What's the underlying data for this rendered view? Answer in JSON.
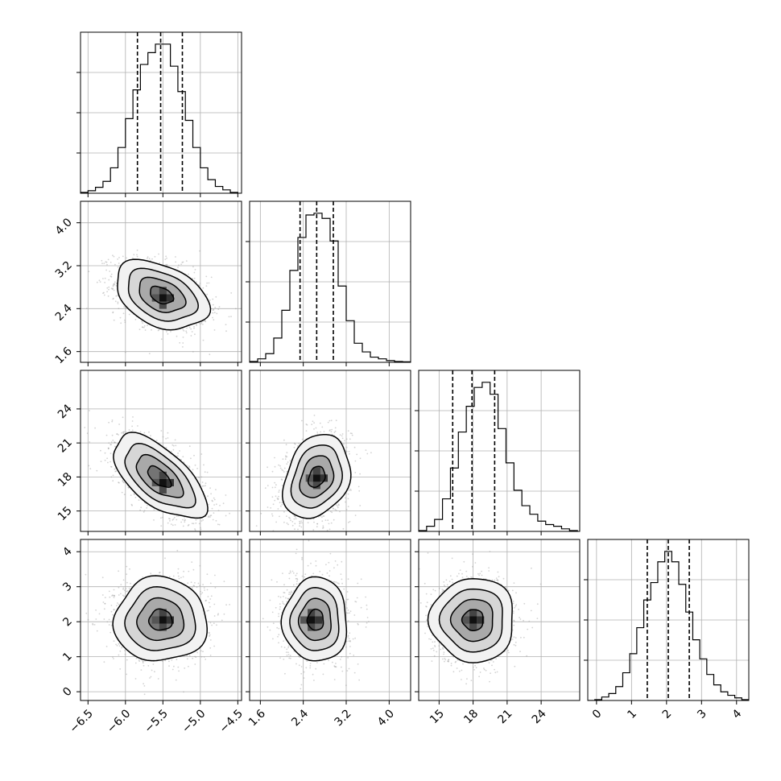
{
  "chart_data": {
    "type": "corner",
    "title": "",
    "parameters": [
      {
        "xlim": [
          -6.6,
          -4.45
        ],
        "ticks": [
          -6.5,
          -6.0,
          -5.5,
          -5.0,
          -4.5
        ],
        "tick_labels": [
          "−6.5",
          "−6.0",
          "−5.5",
          "−5.0",
          "−4.5"
        ],
        "quantiles": [
          -5.84,
          -5.53,
          -5.24
        ]
      },
      {
        "xlim": [
          1.4,
          4.4
        ],
        "ticks": [
          1.6,
          2.4,
          3.2,
          4.0
        ],
        "tick_labels": [
          "1.6",
          "2.4",
          "3.2",
          "4.0"
        ],
        "quantiles": [
          2.34,
          2.65,
          2.96
        ]
      },
      {
        "xlim": [
          13.2,
          27.4
        ],
        "ticks": [
          15,
          18,
          21,
          24
        ],
        "tick_labels": [
          "15",
          "18",
          "21",
          "24"
        ],
        "quantiles": [
          16.2,
          17.9,
          19.9
        ]
      },
      {
        "xlim": [
          -0.25,
          4.35
        ],
        "ticks": [
          0,
          1,
          2,
          3,
          4
        ],
        "tick_labels": [
          "0",
          "1",
          "2",
          "3",
          "4"
        ],
        "quantiles": [
          1.45,
          2.05,
          2.65
        ]
      }
    ],
    "histograms": [
      {
        "param": 0,
        "bin_edges": [
          -6.6,
          -6.5,
          -6.4,
          -6.3,
          -6.2,
          -6.1,
          -6.0,
          -5.9,
          -5.8,
          -5.7,
          -5.6,
          -5.5,
          -5.4,
          -5.3,
          -5.2,
          -5.1,
          -5.0,
          -4.9,
          -4.8,
          -4.7,
          -4.6,
          -4.5
        ],
        "counts": [
          0.5,
          1.5,
          3.5,
          7,
          15,
          27,
          44,
          61,
          76,
          83,
          88,
          88,
          75,
          60,
          43,
          27,
          15,
          8,
          4,
          2,
          0.5
        ]
      },
      {
        "param": 1,
        "bin_edges": [
          1.4,
          1.55,
          1.7,
          1.85,
          2.0,
          2.15,
          2.3,
          2.45,
          2.6,
          2.75,
          2.9,
          3.05,
          3.2,
          3.35,
          3.5,
          3.65,
          3.8,
          3.95,
          4.1,
          4.25,
          4.4
        ],
        "counts": [
          0.5,
          2,
          5,
          14,
          30,
          53,
          72,
          85,
          86,
          83,
          70,
          44,
          24,
          11,
          6,
          3,
          2,
          1,
          0.5,
          0.3
        ]
      },
      {
        "param": 2,
        "bin_edges": [
          13.2,
          13.9,
          14.6,
          15.3,
          16.0,
          16.7,
          17.4,
          18.1,
          18.8,
          19.5,
          20.2,
          20.9,
          21.6,
          22.3,
          23.0,
          23.7,
          24.4,
          25.1,
          25.8,
          26.5,
          27.2
        ],
        "counts": [
          0.5,
          3,
          7,
          19,
          37,
          58,
          73,
          84,
          87,
          80,
          60,
          40,
          24,
          15,
          10,
          6,
          4,
          3,
          1.5,
          0.5
        ]
      },
      {
        "param": 3,
        "bin_edges": [
          -0.25,
          -0.05,
          0.15,
          0.35,
          0.55,
          0.75,
          0.95,
          1.15,
          1.35,
          1.55,
          1.75,
          1.95,
          2.15,
          2.35,
          2.55,
          2.75,
          2.95,
          3.15,
          3.35,
          3.55,
          3.75,
          3.95,
          4.15,
          4.35
        ],
        "counts": [
          0,
          0.5,
          2,
          4,
          8,
          16,
          27,
          42,
          58,
          68,
          80,
          86,
          80,
          67,
          51,
          35,
          24,
          15,
          9,
          5,
          3,
          1.5,
          0.5
        ]
      }
    ],
    "pair_densities": [
      {
        "x_param": 0,
        "y_param": 1,
        "center": [
          -5.52,
          2.65
        ],
        "sigma": [
          0.31,
          0.32
        ],
        "rho": -0.37,
        "mode": [
          -5.5,
          2.6
        ]
      },
      {
        "x_param": 0,
        "y_param": 2,
        "center": [
          -5.55,
          18.0
        ],
        "sigma": [
          0.31,
          1.85
        ],
        "rho": -0.62,
        "mode": [
          -5.5,
          17.5
        ]
      },
      {
        "x_param": 1,
        "y_param": 2,
        "center": [
          2.65,
          18.0
        ],
        "sigma": [
          0.31,
          1.85
        ],
        "rho": 0.25,
        "mode": [
          2.65,
          17.9
        ]
      },
      {
        "x_param": 0,
        "y_param": 3,
        "center": [
          -5.53,
          2.05
        ],
        "sigma": [
          0.31,
          0.6
        ],
        "rho": 0.0,
        "mode": [
          -5.5,
          2.05
        ]
      },
      {
        "x_param": 1,
        "y_param": 3,
        "center": [
          2.63,
          2.05
        ],
        "sigma": [
          0.3,
          0.6
        ],
        "rho": 0.0,
        "mode": [
          2.55,
          2.05
        ]
      },
      {
        "x_param": 2,
        "y_param": 3,
        "center": [
          18.0,
          2.05
        ],
        "sigma": [
          1.85,
          0.6
        ],
        "rho": 0.0,
        "mode": [
          18.0,
          2.05
        ]
      }
    ],
    "contour_levels_sigma": [
      0.5,
      1.0,
      1.5,
      2.0
    ],
    "grid": true,
    "colors": {
      "contour": "#000000",
      "points": "#9e9e9e",
      "grid": "#b0b0b0",
      "density_max": "#000000"
    }
  }
}
